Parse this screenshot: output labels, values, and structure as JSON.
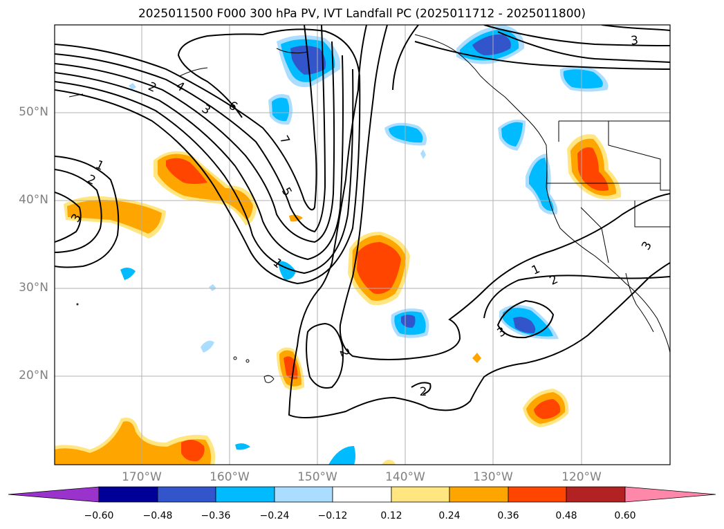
{
  "title": "2025011500 F000 300 hPa PV, IVT Landfall PC (2025011712 - 2025011800)",
  "map": {
    "latitude_labels": [
      "50°N",
      "40°N",
      "30°N",
      "20°N"
    ],
    "longitude_labels": [
      "170°W",
      "160°W",
      "150°W",
      "140°W",
      "130°W",
      "120°W"
    ],
    "contour_labels": [
      "1",
      "2",
      "3",
      "4",
      "5",
      "6",
      "7",
      "1",
      "2",
      "3",
      "2",
      "2",
      "3",
      "1",
      "2",
      "3",
      "3",
      "3",
      "2"
    ],
    "pv_contour_color": "#000000"
  },
  "colorbar": {
    "tick_labels": [
      "−0.60",
      "−0.48",
      "−0.36",
      "−0.24",
      "−0.12",
      "0.12",
      "0.24",
      "0.36",
      "0.48",
      "0.60"
    ],
    "colors": {
      "under": "#9933cc",
      "neg_060_048": "#000099",
      "neg_048_036": "#3355cc",
      "neg_036_024": "#00bbff",
      "neg_024_012": "#aaddff",
      "neutral": "#ffffff",
      "pos_012_024": "#ffe680",
      "pos_024_036": "#ffa500",
      "pos_036_048": "#ff4500",
      "pos_048_060": "#b22222",
      "over": "#ff88aa"
    }
  }
}
